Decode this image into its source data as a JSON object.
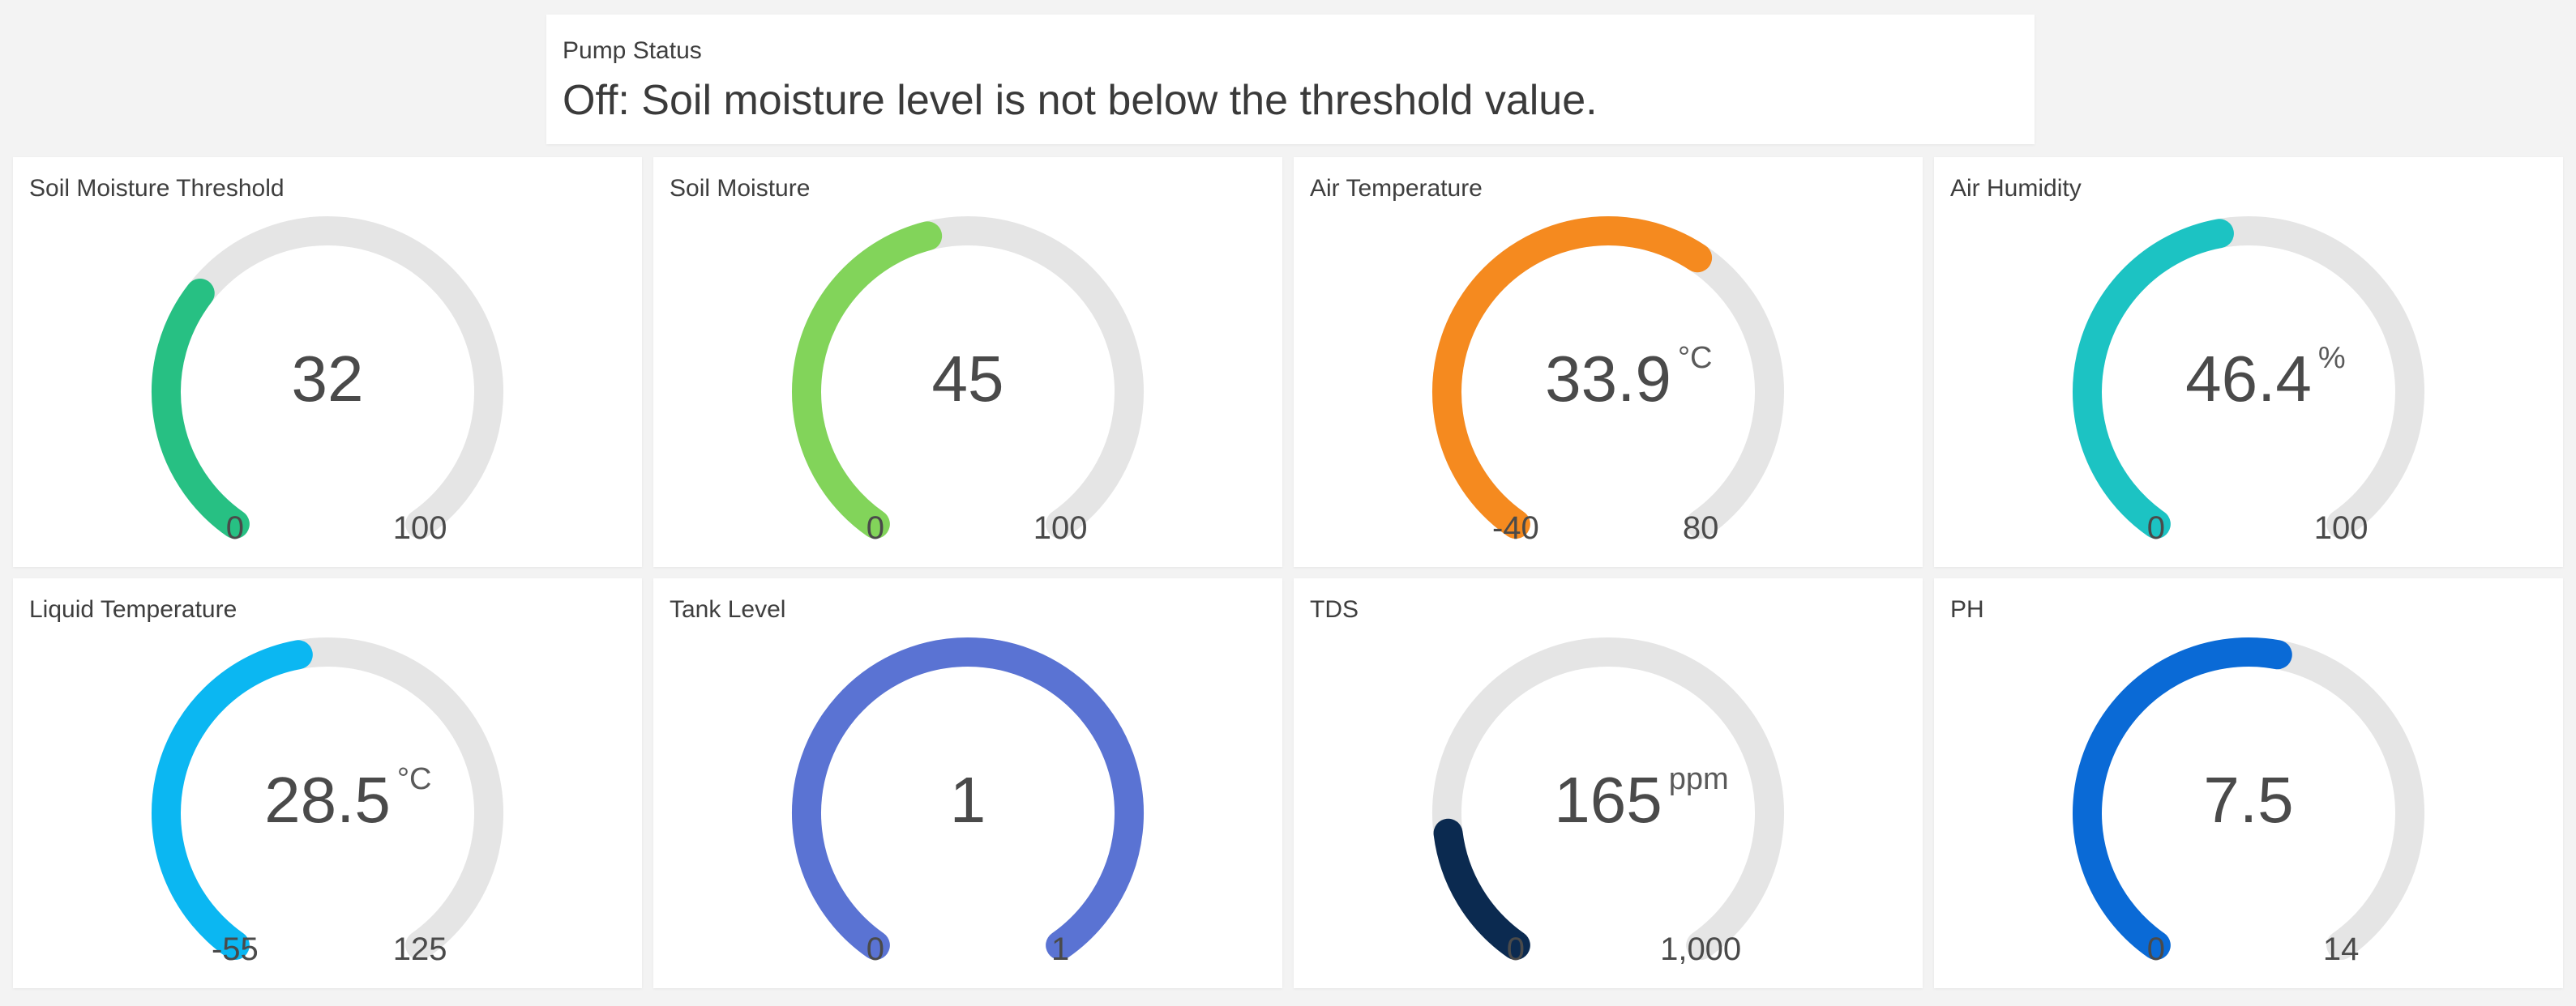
{
  "pump_status": {
    "title": "Pump Status",
    "text": "Off: Soil moisture level is not below the threshold value."
  },
  "gauges": [
    {
      "title": "Soil Moisture Threshold",
      "value": 32,
      "display": "32",
      "unit": "",
      "min": 0,
      "max": 100,
      "min_label": "0",
      "max_label": "100",
      "color": "#27c083"
    },
    {
      "title": "Soil Moisture",
      "value": 45,
      "display": "45",
      "unit": "",
      "min": 0,
      "max": 100,
      "min_label": "0",
      "max_label": "100",
      "color": "#82d45a"
    },
    {
      "title": "Air Temperature",
      "value": 33.9,
      "display": "33.9",
      "unit": "°C",
      "min": -40,
      "max": 80,
      "min_label": "-40",
      "max_label": "80",
      "color": "#f58a1f"
    },
    {
      "title": "Air Humidity",
      "value": 46.4,
      "display": "46.4",
      "unit": "%",
      "min": 0,
      "max": 100,
      "min_label": "0",
      "max_label": "100",
      "color": "#1cc3c3"
    },
    {
      "title": "Liquid Temperature",
      "value": 28.5,
      "display": "28.5",
      "unit": "°C",
      "min": -55,
      "max": 125,
      "min_label": "-55",
      "max_label": "125",
      "color": "#0bb7f2"
    },
    {
      "title": "Tank Level",
      "value": 1,
      "display": "1",
      "unit": "",
      "min": 0,
      "max": 1,
      "min_label": "0",
      "max_label": "1",
      "color": "#5a73d3"
    },
    {
      "title": "TDS",
      "value": 165,
      "display": "165",
      "unit": "ppm",
      "min": 0,
      "max": 1000,
      "min_label": "0",
      "max_label": "1,000",
      "color": "#0b2a50"
    },
    {
      "title": "PH",
      "value": 7.5,
      "display": "7.5",
      "unit": "",
      "min": 0,
      "max": 14,
      "min_label": "0",
      "max_label": "14",
      "color": "#0a6ad6"
    }
  ],
  "colors": {
    "track": "#e5e5e5",
    "card_bg": "#ffffff",
    "page_bg": "#f3f3f3"
  }
}
